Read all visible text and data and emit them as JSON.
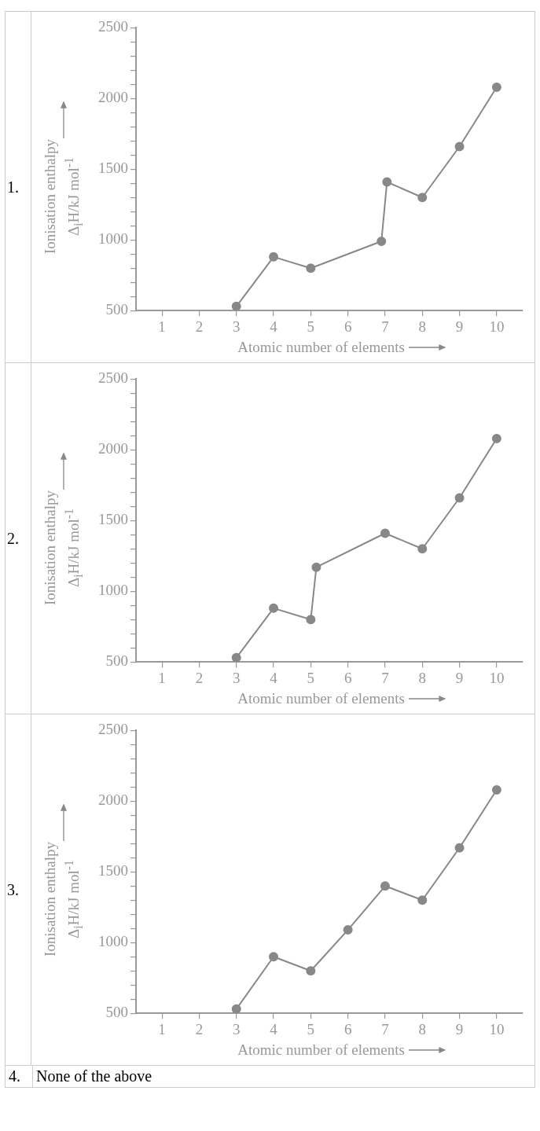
{
  "chart_data": [
    {
      "type": "line",
      "annotations": [
        "1."
      ],
      "xlabel": "Atomic number of elements",
      "ylabel": "Ionisation enthalpy\nΔ$_{i}$H/kJ mol$^{-1}$",
      "x": [
        3,
        4,
        5,
        6.9,
        7.05,
        8,
        9,
        10
      ],
      "values": [
        530,
        880,
        800,
        990,
        1410,
        1300,
        1660,
        2080
      ],
      "color": "#888888",
      "marker": "circle",
      "xlim": [
        0.3,
        10.7
      ],
      "xticks": [
        1,
        2,
        3,
        4,
        5,
        6,
        7,
        8,
        9,
        10
      ],
      "ylim": [
        500,
        2500
      ],
      "yticks": [
        500,
        {
          "value": 600,
          "label": null
        },
        {
          "value": 700,
          "label": null
        },
        {
          "value": 800,
          "label": null
        },
        {
          "value": 900,
          "label": null
        },
        1000,
        {
          "value": 1100,
          "label": null
        },
        {
          "value": 1200,
          "label": null
        },
        {
          "value": 1300,
          "label": null
        },
        {
          "value": 1400,
          "label": null
        },
        1500,
        {
          "value": 1600,
          "label": null
        },
        {
          "value": 1700,
          "label": null
        },
        {
          "value": 1800,
          "label": null
        },
        {
          "value": 1900,
          "label": null
        },
        2000,
        {
          "value": 2100,
          "label": null
        },
        {
          "value": 2200,
          "label": null
        },
        {
          "value": 2300,
          "label": null
        },
        {
          "value": 2400,
          "label": null
        },
        2500
      ]
    },
    {
      "type": "line",
      "annotations": [
        "2."
      ],
      "xlabel": "Atomic number of elements",
      "ylabel": "Ionisation enthalpy\nΔ$_{i}$H/kJ mol$^{-1}$",
      "x": [
        3,
        4,
        5,
        5.15,
        7,
        8,
        9,
        10
      ],
      "values": [
        530,
        880,
        800,
        1170,
        1410,
        1300,
        1660,
        2080
      ],
      "color": "#888888",
      "marker": "circle",
      "xlim": [
        0.3,
        10.7
      ],
      "xticks": [
        1,
        2,
        3,
        4,
        5,
        6,
        7,
        8,
        9,
        10
      ],
      "ylim": [
        500,
        2500
      ],
      "yticks": [
        500,
        {
          "value": 600,
          "label": null
        },
        {
          "value": 700,
          "label": null
        },
        {
          "value": 800,
          "label": null
        },
        {
          "value": 900,
          "label": null
        },
        1000,
        {
          "value": 1100,
          "label": null
        },
        {
          "value": 1200,
          "label": null
        },
        {
          "value": 1300,
          "label": null
        },
        {
          "value": 1400,
          "label": null
        },
        1500,
        {
          "value": 1600,
          "label": null
        },
        {
          "value": 1700,
          "label": null
        },
        {
          "value": 1800,
          "label": null
        },
        {
          "value": 1900,
          "label": null
        },
        2000,
        {
          "value": 2100,
          "label": null
        },
        {
          "value": 2200,
          "label": null
        },
        {
          "value": 2300,
          "label": null
        },
        {
          "value": 2400,
          "label": null
        },
        2500
      ]
    },
    {
      "type": "line",
      "annotations": [
        "3."
      ],
      "xlabel": "Atomic number of elements",
      "ylabel": "Ionisation enthalpy\nΔ$_{i}$H/kJ mol$^{-1}$",
      "x": [
        3,
        4,
        5,
        6,
        7,
        8,
        9,
        10
      ],
      "values": [
        530,
        900,
        800,
        1090,
        1400,
        1300,
        1670,
        2080
      ],
      "color": "#888888",
      "marker": "circle",
      "xlim": [
        0.3,
        10.7
      ],
      "xticks": [
        1,
        2,
        3,
        4,
        5,
        6,
        7,
        8,
        9,
        10
      ],
      "ylim": [
        500,
        2500
      ],
      "yticks": [
        500,
        {
          "value": 600,
          "label": null
        },
        {
          "value": 700,
          "label": null
        },
        {
          "value": 800,
          "label": null
        },
        {
          "value": 900,
          "label": null
        },
        1000,
        {
          "value": 1100,
          "label": null
        },
        {
          "value": 1200,
          "label": null
        },
        {
          "value": 1300,
          "label": null
        },
        {
          "value": 1400,
          "label": null
        },
        1500,
        {
          "value": 1600,
          "label": null
        },
        {
          "value": 1700,
          "label": null
        },
        {
          "value": 1800,
          "label": null
        },
        {
          "value": 1900,
          "label": null
        },
        2000,
        {
          "value": 2100,
          "label": null
        },
        {
          "value": 2200,
          "label": null
        },
        {
          "value": 2300,
          "label": null
        },
        {
          "value": 2400,
          "label": null
        },
        2500
      ]
    },
    {
      "type": "other",
      "annotations": [
        "4.",
        "None of the above"
      ]
    }
  ]
}
